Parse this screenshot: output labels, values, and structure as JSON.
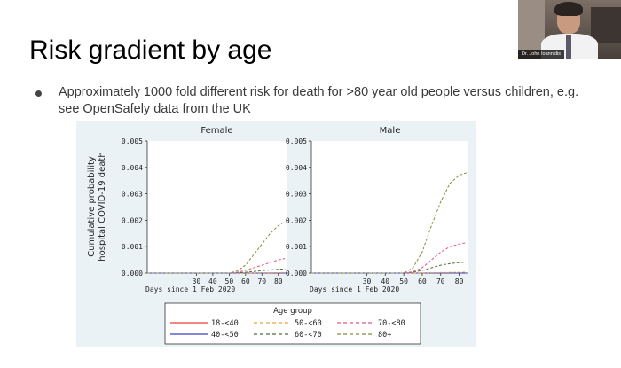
{
  "slide": {
    "title": "Risk gradient by age",
    "bullet_text": "Approximately 1000 fold different risk for death for >80 year old people versus children, e.g. see OpenSafely data from the UK"
  },
  "webcam": {
    "name": "Dr. John Ioannidis"
  },
  "chart_data": {
    "type": "line",
    "ylabel": "Cumulative probability\nhospital COVID-19 death",
    "xlabel": "Days since 1 Feb 2020",
    "x_ticks": [
      30,
      40,
      50,
      60,
      70,
      80
    ],
    "y_ticks": [
      "0.000",
      "0.001",
      "0.002",
      "0.003",
      "0.004",
      "0.005"
    ],
    "xlim": [
      0,
      85
    ],
    "ylim": [
      0,
      0.005
    ],
    "legend_title": "Age group",
    "legend_position": "bottom",
    "x": [
      0,
      50,
      55,
      60,
      65,
      70,
      75,
      80,
      84
    ],
    "panels": [
      {
        "name": "Female",
        "series": [
          {
            "name": "18-<40",
            "color": "#e8413b",
            "dash": "solid",
            "values": [
              0,
              0,
              0,
              0,
              0,
              0,
              0,
              0,
              0
            ]
          },
          {
            "name": "40-<50",
            "color": "#3b3fc4",
            "dash": "solid",
            "values": [
              0,
              0,
              0,
              0,
              0,
              0,
              0,
              0,
              0
            ]
          },
          {
            "name": "50-<60",
            "color": "#e8a33b",
            "dash": "dashed",
            "values": [
              0,
              0,
              3e-06,
              6e-06,
              9e-06,
              1.2e-05,
              1.5e-05,
              1.7e-05,
              2e-05
            ]
          },
          {
            "name": "60-<70",
            "color": "#556b3b",
            "dash": "dashed",
            "values": [
              0,
              0,
              1e-05,
              3e-05,
              6e-05,
              9e-05,
              0.00012,
              0.00014,
              0.00016
            ]
          },
          {
            "name": "70-<80",
            "color": "#e05a7a",
            "dash": "dashed",
            "values": [
              0,
              0,
              3e-05,
              0.0001,
              0.0002,
              0.0003,
              0.0004,
              0.0005,
              0.00055
            ]
          },
          {
            "name": "80+",
            "color": "#8a8a3b",
            "dash": "dashed",
            "values": [
              0,
              0,
              8e-05,
              0.0003,
              0.0007,
              0.0011,
              0.0015,
              0.0018,
              0.00195
            ]
          }
        ]
      },
      {
        "name": "Male",
        "series": [
          {
            "name": "18-<40",
            "color": "#e8413b",
            "dash": "solid",
            "values": [
              0,
              0,
              0,
              0,
              0,
              0,
              0,
              0,
              0
            ]
          },
          {
            "name": "40-<50",
            "color": "#3b3fc4",
            "dash": "solid",
            "values": [
              0,
              0,
              0,
              0,
              0,
              0,
              0,
              0,
              0
            ]
          },
          {
            "name": "50-<60",
            "color": "#e8a33b",
            "dash": "dashed",
            "values": [
              0,
              0,
              5e-06,
              1e-05,
              1.5e-05,
              2e-05,
              2.5e-05,
              3e-05,
              3.5e-05
            ]
          },
          {
            "name": "60-<70",
            "color": "#556b3b",
            "dash": "dashed",
            "values": [
              0,
              0,
              3e-05,
              0.0001,
              0.0002,
              0.0003,
              0.00036,
              0.0004,
              0.00042
            ]
          },
          {
            "name": "70-<80",
            "color": "#e05a7a",
            "dash": "dashed",
            "values": [
              0,
              0,
              5e-05,
              0.0002,
              0.0005,
              0.0008,
              0.001,
              0.0011,
              0.00115
            ]
          },
          {
            "name": "80+",
            "color": "#8a8a3b",
            "dash": "dashed",
            "values": [
              0,
              0,
              0.0002,
              0.0008,
              0.0018,
              0.0027,
              0.0034,
              0.0037,
              0.0038
            ]
          }
        ]
      }
    ]
  }
}
